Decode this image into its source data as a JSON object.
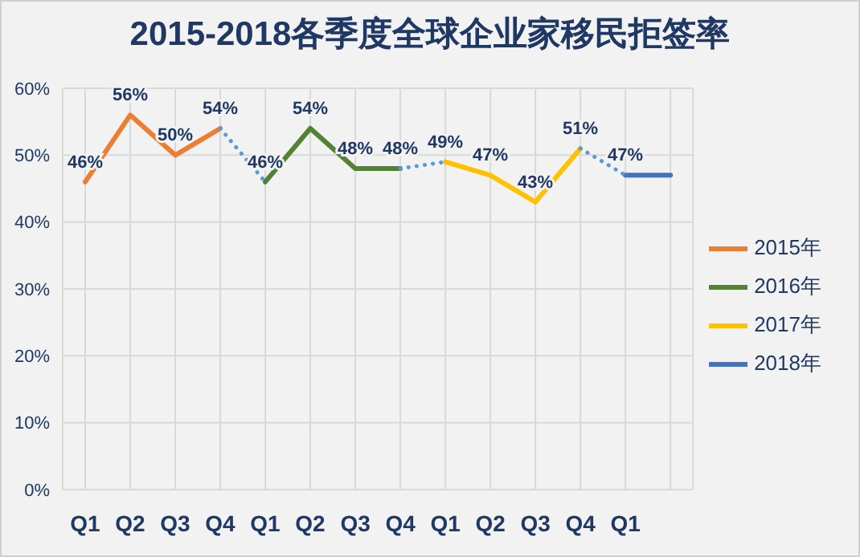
{
  "chart_data": {
    "type": "line",
    "title": "2015-2018各季度全球企业家移民拒签率",
    "categories": [
      "Q1",
      "Q2",
      "Q3",
      "Q4",
      "Q1",
      "Q2",
      "Q3",
      "Q4",
      "Q1",
      "Q2",
      "Q3",
      "Q4",
      "Q1",
      null
    ],
    "ylim": [
      0,
      60
    ],
    "yticks": [
      {
        "value": 0,
        "label": "0%"
      },
      {
        "value": 10,
        "label": "10%"
      },
      {
        "value": 20,
        "label": "20%"
      },
      {
        "value": 30,
        "label": "30%"
      },
      {
        "value": 40,
        "label": "40%"
      },
      {
        "value": 50,
        "label": "50%"
      },
      {
        "value": 60,
        "label": "60%"
      }
    ],
    "grid": true,
    "legend": "right",
    "marker": "none",
    "line_style": "solid",
    "series": [
      {
        "name": "2015年",
        "color": "#ed7d31",
        "values": [
          46,
          56,
          50,
          54,
          null,
          null,
          null,
          null,
          null,
          null,
          null,
          null,
          null,
          null
        ],
        "value_labels": [
          "46%",
          "56%",
          "50%",
          "54%",
          null,
          null,
          null,
          null,
          null,
          null,
          null,
          null,
          null,
          null
        ]
      },
      {
        "name": "2016年",
        "color": "#548235",
        "values": [
          null,
          null,
          null,
          null,
          46,
          54,
          48,
          48,
          null,
          null,
          null,
          null,
          null,
          null
        ],
        "value_labels": [
          null,
          null,
          null,
          null,
          "46%",
          "54%",
          "48%",
          "48%",
          null,
          null,
          null,
          null,
          null,
          null
        ]
      },
      {
        "name": "2017年",
        "color": "#ffc000",
        "values": [
          null,
          null,
          null,
          null,
          null,
          null,
          null,
          null,
          49,
          47,
          43,
          51,
          null,
          null
        ],
        "value_labels": [
          null,
          null,
          null,
          null,
          null,
          null,
          null,
          null,
          "49%",
          "47%",
          "43%",
          "51%",
          null,
          null
        ]
      },
      {
        "name": "2018年",
        "color": "#4472c4",
        "values": [
          null,
          null,
          null,
          null,
          null,
          null,
          null,
          null,
          null,
          null,
          null,
          null,
          47,
          47
        ],
        "value_labels": [
          null,
          null,
          null,
          null,
          null,
          null,
          null,
          null,
          null,
          null,
          null,
          null,
          "47%",
          null
        ]
      },
      {
        "color": "#5b9bd5",
        "line_style": "dotted",
        "values": [
          null,
          null,
          null,
          54,
          46,
          null,
          null,
          48,
          49,
          null,
          null,
          51,
          47,
          null
        ]
      }
    ]
  }
}
